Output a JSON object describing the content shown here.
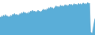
{
  "chart_data": {
    "type": "area",
    "series": [
      {
        "type": "area",
        "color": "#5aaed8",
        "values": [
          55,
          50,
          58,
          52,
          60,
          54,
          62,
          56,
          58,
          53,
          57,
          52,
          60,
          55,
          63,
          58,
          65,
          60,
          63,
          58,
          62,
          57,
          65,
          60,
          68,
          63,
          70,
          65,
          68,
          63,
          67,
          62,
          70,
          65,
          73,
          68,
          75,
          70,
          73,
          68,
          72,
          67,
          75,
          70,
          73,
          68,
          72,
          75,
          78,
          73,
          77,
          72,
          80,
          75,
          83,
          78,
          85,
          80,
          83,
          78,
          82,
          85,
          88,
          83,
          87,
          82,
          86,
          90,
          85,
          89,
          84,
          88,
          92,
          87,
          91,
          86,
          90,
          94,
          89,
          93,
          88,
          92,
          95,
          90,
          94,
          89,
          93,
          96,
          91,
          95,
          90,
          94,
          97,
          92,
          96,
          91,
          95,
          98,
          93,
          96,
          10,
          5,
          3,
          20,
          35,
          50
        ]
      },
      {
        "type": "line",
        "color": "#4a9cc7",
        "values": [
          55,
          50,
          58,
          52,
          60,
          54,
          62,
          56,
          58,
          53,
          57,
          52,
          60,
          55,
          63,
          58,
          65,
          60,
          63,
          58,
          62,
          57,
          65,
          60,
          68,
          63,
          70,
          65,
          68,
          63,
          67,
          62,
          70,
          65,
          73,
          68,
          75,
          70,
          73,
          68,
          72,
          67,
          75,
          70,
          73,
          68,
          72,
          75,
          78,
          73,
          77,
          72,
          80,
          75,
          83,
          78,
          85,
          80,
          83,
          78,
          82,
          85,
          88,
          83,
          87,
          82,
          86,
          90,
          85,
          89,
          84,
          88,
          92,
          87,
          91,
          86,
          90,
          94,
          89,
          93,
          88,
          92,
          95,
          90,
          94,
          89,
          93,
          96,
          91,
          95,
          90,
          94,
          97,
          92,
          96,
          91,
          95,
          98,
          93,
          96,
          10,
          5,
          3,
          20,
          35,
          50
        ]
      }
    ],
    "xlim": [
      0,
      105
    ],
    "ylim": [
      0,
      105.84
    ],
    "grid": false,
    "tick_labels": false
  }
}
